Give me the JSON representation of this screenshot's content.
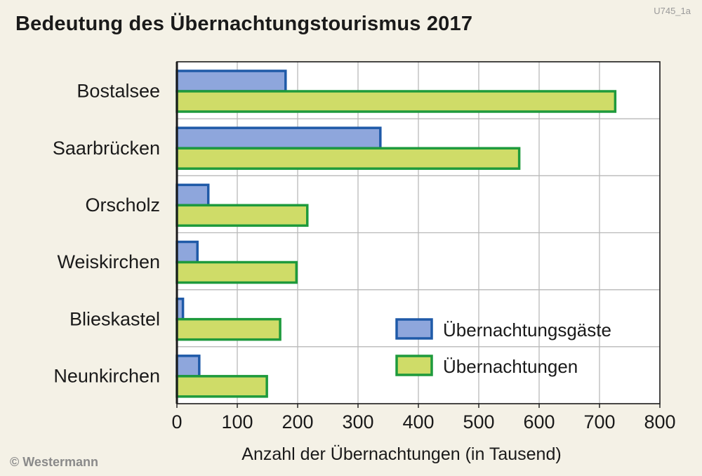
{
  "figure_code": "U745_1a",
  "copyright": "© Westermann",
  "colors": {
    "background": "#f4f1e6",
    "guests_fill": "#8ea6dc",
    "guests_stroke": "#1f5aa8",
    "nights_fill": "#cfdc68",
    "nights_stroke": "#1e9a3c",
    "grid": "#b9b9b9",
    "plot_bg": "#ffffff"
  },
  "chart_data": {
    "type": "bar",
    "orientation": "horizontal",
    "title": "Bedeutung des Übernachtungstourismus 2017",
    "xlabel": "Anzahl der Übernachtungen (in Tausend)",
    "ylabel": "",
    "xlim": [
      0,
      800
    ],
    "xticks": [
      0,
      100,
      200,
      300,
      400,
      500,
      600,
      700,
      800
    ],
    "grid": true,
    "legend_position": "bottom-right",
    "categories": [
      "Bostalsee",
      "Saarbrücken",
      "Orscholz",
      "Weiskirchen",
      "Blieskastel",
      "Neunkirchen"
    ],
    "series": [
      {
        "name": "Übernachtungsgäste",
        "values": [
          180,
          337,
          52,
          34,
          10,
          37
        ]
      },
      {
        "name": "Übernachtungen",
        "values": [
          726,
          567,
          216,
          198,
          171,
          149
        ]
      }
    ]
  }
}
